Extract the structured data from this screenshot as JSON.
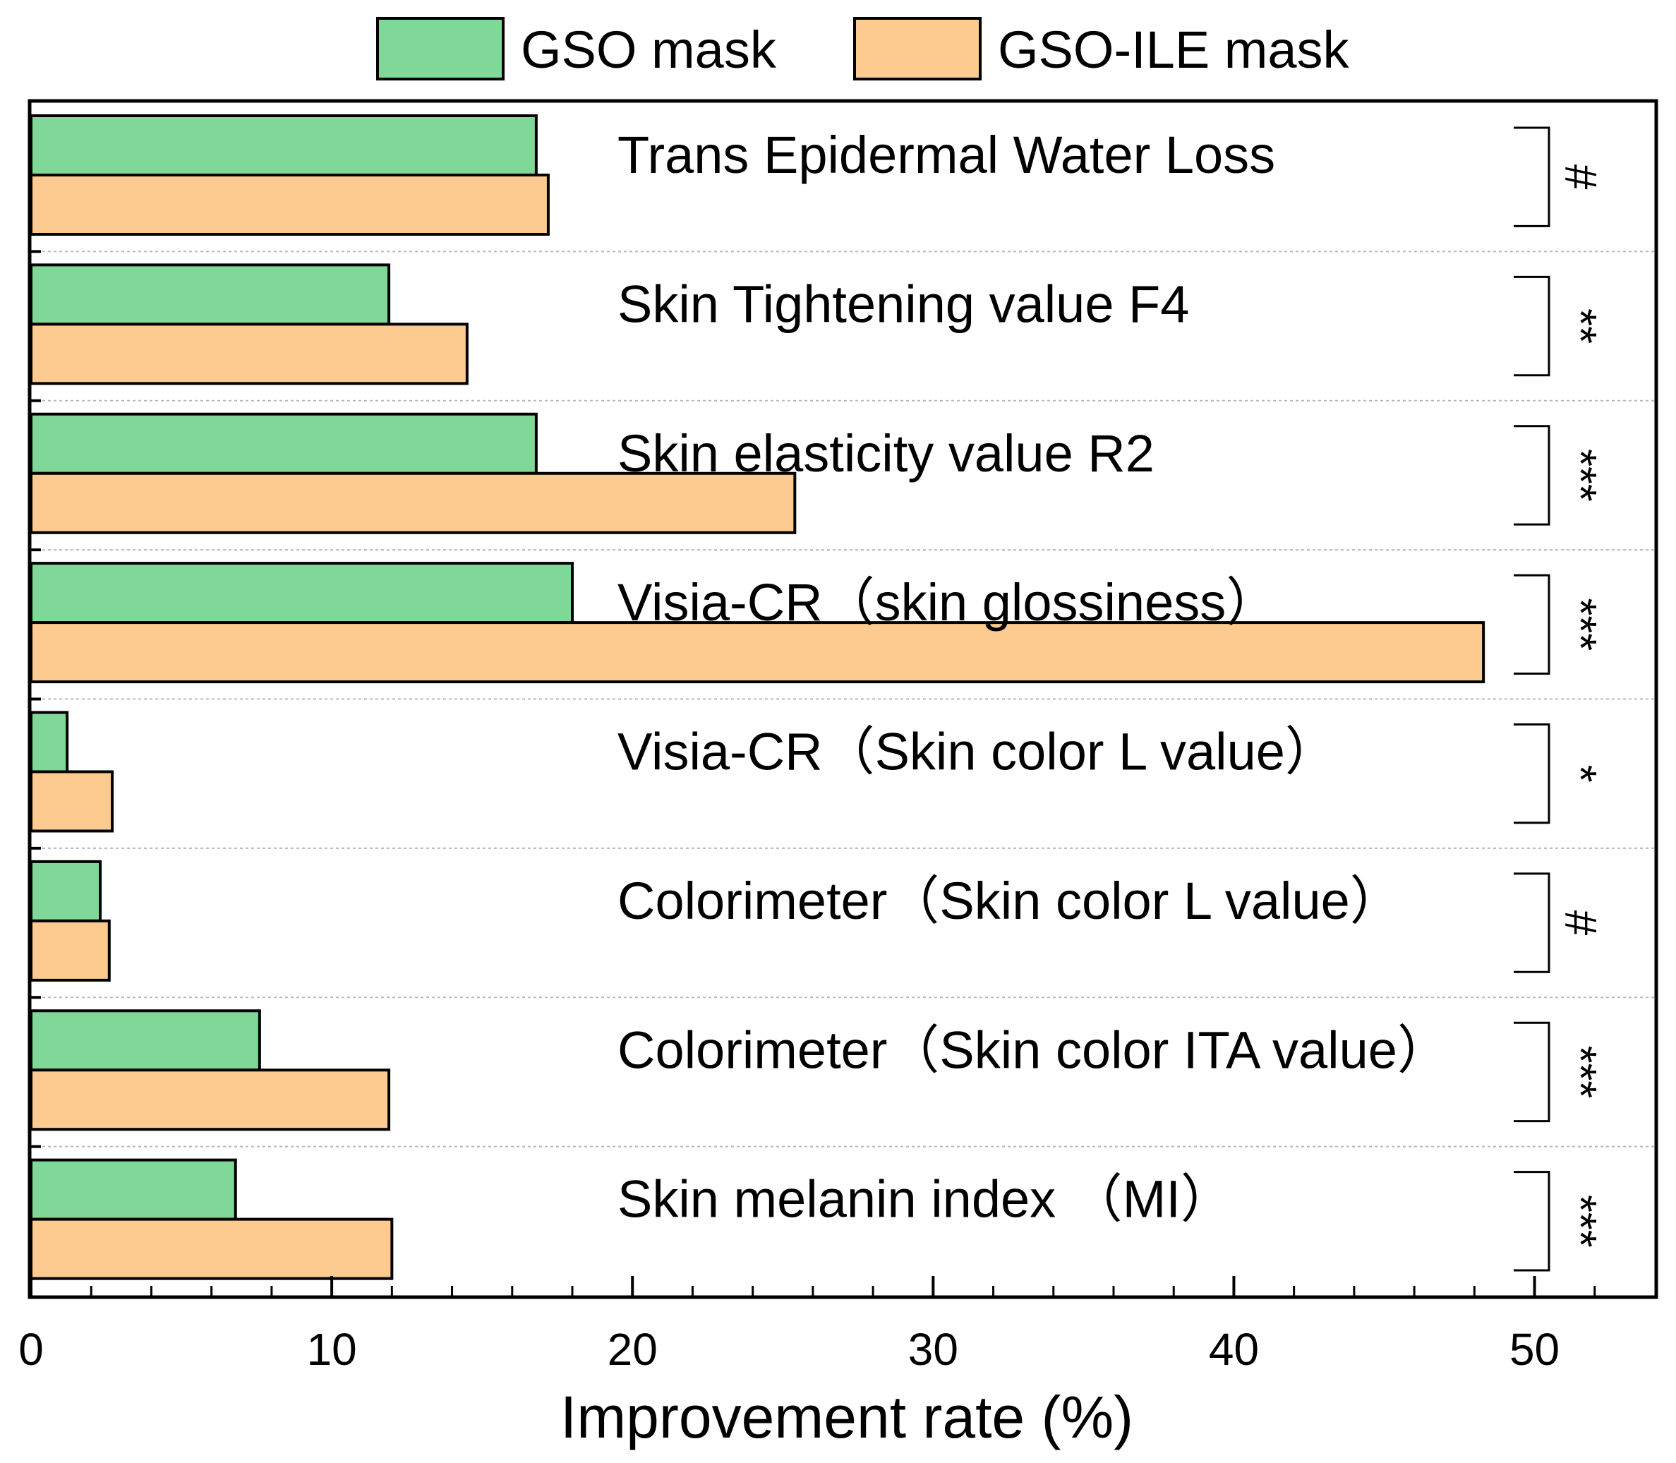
{
  "chart_data": {
    "type": "bar",
    "orientation": "horizontal",
    "title": "",
    "xlabel": "Improvement rate (%)",
    "ylabel": "",
    "xlim": [
      0,
      54
    ],
    "xticks": [
      0,
      10,
      20,
      30,
      40,
      50
    ],
    "xtick_labels": [
      "0",
      "10",
      "20",
      "30",
      "40",
      "50"
    ],
    "grid": false,
    "legend_position": "top-center",
    "categories": [
      "Trans Epidermal Water Loss",
      "Skin Tightening value F4",
      "Skin elasticity value R2",
      "Visia-CR（skin glossiness）",
      "Visia-CR（Skin color L value）",
      "Colorimeter（Skin color L value）",
      "Colorimeter（Skin color ITA value）",
      "Skin melanin index （MI）"
    ],
    "significance": [
      "#",
      "**",
      "***",
      "***",
      "*",
      "#",
      "***",
      "***"
    ],
    "series": [
      {
        "name": "GSO mask",
        "color": "#7fd898",
        "values": [
          16.8,
          11.9,
          16.8,
          18.0,
          1.2,
          2.3,
          7.6,
          6.8
        ]
      },
      {
        "name": "GSO-ILE mask",
        "color": "#fdcb8f",
        "values": [
          17.2,
          14.5,
          25.4,
          48.3,
          2.7,
          2.6,
          11.9,
          12.0
        ]
      }
    ]
  }
}
